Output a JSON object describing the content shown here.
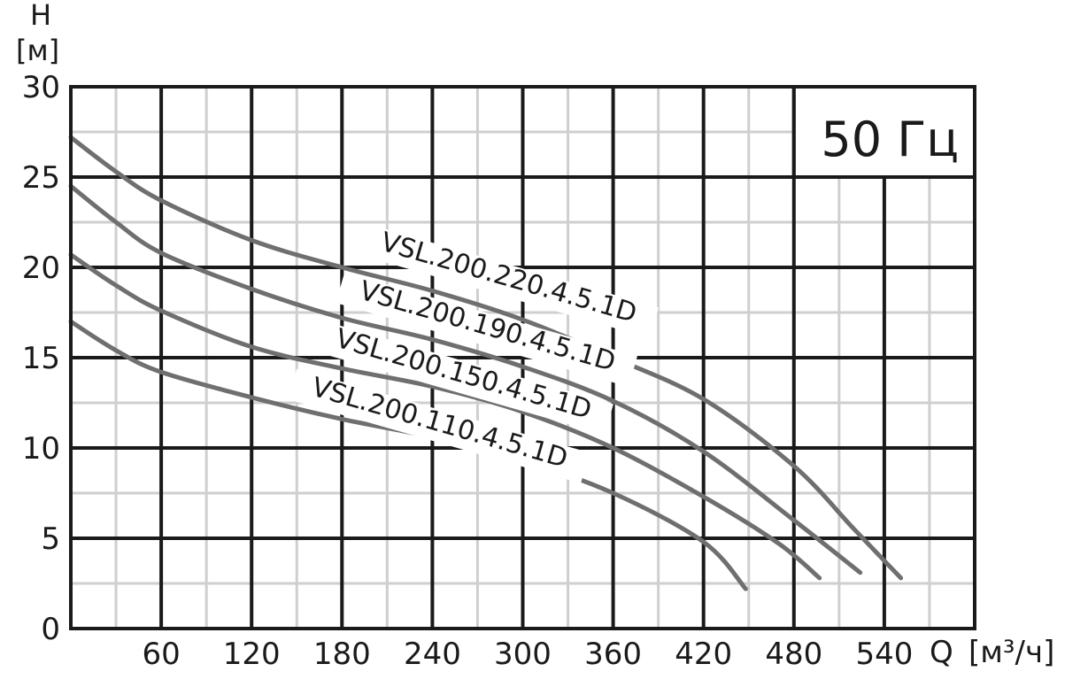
{
  "chart_data": {
    "type": "line",
    "frequency_label": "50 Гц",
    "y_axis": {
      "title": "H",
      "unit": "[м]",
      "range": [
        0,
        30
      ],
      "ticks": [
        "0",
        "5",
        "10",
        "15",
        "20",
        "25",
        "30"
      ],
      "tick_values": [
        0,
        5,
        10,
        15,
        20,
        25,
        30
      ]
    },
    "x_axis": {
      "title": "Q",
      "unit": "[м³/ч]",
      "range": [
        0,
        600
      ],
      "ticks": [
        "60",
        "120",
        "180",
        "240",
        "300",
        "360",
        "420",
        "480",
        "540"
      ],
      "tick_values": [
        60,
        120,
        180,
        240,
        300,
        360,
        420,
        480,
        540
      ]
    },
    "grid": {
      "major_x_step": 60,
      "major_y_step": 5,
      "minor_x_step": 30,
      "minor_y_step": 2.5
    },
    "legend": "labels placed along curves",
    "colors": {
      "curve": "#6f6f6f",
      "major_grid": "#1a1a1a",
      "minor_grid": "#cfcfcf",
      "text": "#1a1a1a"
    },
    "series": [
      {
        "name": "VSL.200.220.4.5.1D",
        "points": [
          [
            0,
            27.2
          ],
          [
            30,
            25.3
          ],
          [
            60,
            23.7
          ],
          [
            120,
            21.5
          ],
          [
            180,
            20.0
          ],
          [
            240,
            18.7
          ],
          [
            300,
            17.1
          ],
          [
            360,
            15.0
          ],
          [
            420,
            12.7
          ],
          [
            480,
            9.0
          ],
          [
            520,
            5.5
          ],
          [
            551,
            2.8
          ]
        ]
      },
      {
        "name": "VSL.200.190.4.5.1D",
        "points": [
          [
            0,
            24.5
          ],
          [
            30,
            22.5
          ],
          [
            60,
            20.8
          ],
          [
            120,
            18.8
          ],
          [
            180,
            17.2
          ],
          [
            240,
            16.0
          ],
          [
            300,
            14.5
          ],
          [
            360,
            12.6
          ],
          [
            420,
            9.8
          ],
          [
            480,
            6.0
          ],
          [
            524,
            3.1
          ]
        ]
      },
      {
        "name": "VSL.200.150.4.5.1D",
        "points": [
          [
            0,
            20.7
          ],
          [
            30,
            19.0
          ],
          [
            60,
            17.6
          ],
          [
            120,
            15.6
          ],
          [
            180,
            14.4
          ],
          [
            240,
            13.4
          ],
          [
            300,
            12.0
          ],
          [
            360,
            10.0
          ],
          [
            420,
            7.3
          ],
          [
            470,
            4.7
          ],
          [
            497,
            2.8
          ]
        ]
      },
      {
        "name": "VSL.200.110.4.5.1D",
        "points": [
          [
            0,
            17.0
          ],
          [
            30,
            15.4
          ],
          [
            60,
            14.2
          ],
          [
            120,
            12.8
          ],
          [
            180,
            11.6
          ],
          [
            240,
            10.6
          ],
          [
            300,
            9.3
          ],
          [
            360,
            7.5
          ],
          [
            420,
            4.8
          ],
          [
            448,
            2.2
          ]
        ]
      }
    ]
  }
}
